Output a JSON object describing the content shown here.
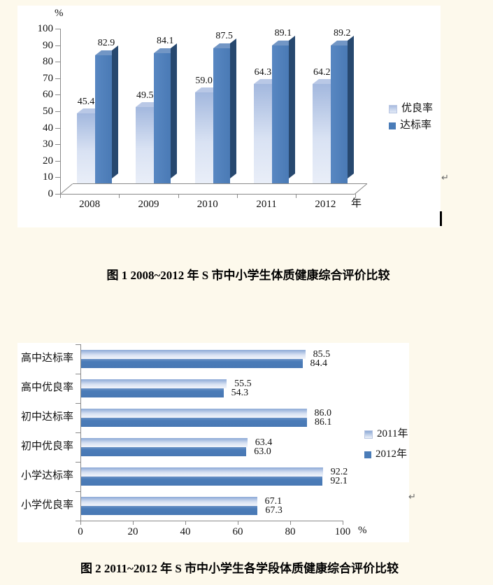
{
  "page": {
    "caption1": "图 1  2008~2012 年 S 市中小学生体质健康综合评价比较",
    "caption2": "图 2  2011~2012 年 S 市中小学生各学段体质健康综合评价比较",
    "return_mark": "↵",
    "background": "#fdf9ec",
    "accent_dark_blue": "#4a7cb8",
    "accent_light_blue": "#c5d3ec"
  },
  "chart_data": [
    {
      "type": "bar",
      "style": "3d-clustered-column",
      "title": "",
      "categories": [
        "2008",
        "2009",
        "2010",
        "2011",
        "2012"
      ],
      "series": [
        {
          "name": "优良率",
          "values": [
            45.4,
            49.5,
            59.0,
            64.3,
            64.2
          ],
          "color": "#c5d3ec"
        },
        {
          "name": "达标率",
          "values": [
            82.9,
            84.1,
            87.5,
            89.1,
            89.2
          ],
          "color": "#4a7cb8"
        }
      ],
      "ylabel": "%",
      "xlabel": "年",
      "ylim": [
        0,
        100
      ],
      "yticks": [
        0,
        10,
        20,
        30,
        40,
        50,
        60,
        70,
        80,
        90,
        100
      ],
      "grid": false,
      "legend_position": "right",
      "data_labels": true
    },
    {
      "type": "bar",
      "orientation": "horizontal",
      "title": "",
      "categories": [
        "高中达标率",
        "高中优良率",
        "初中达标率",
        "初中优良率",
        "小学达标率",
        "小学优良率"
      ],
      "series": [
        {
          "name": "2011年",
          "values": [
            85.5,
            55.5,
            86.0,
            63.4,
            92.2,
            67.1
          ],
          "color": "#c5d3ec"
        },
        {
          "name": "2012年",
          "values": [
            84.4,
            54.3,
            86.1,
            63.0,
            92.1,
            67.3
          ],
          "color": "#4a7cb8"
        }
      ],
      "xlabel": "%",
      "xlim": [
        0,
        100
      ],
      "xticks": [
        0,
        20,
        40,
        60,
        80,
        100
      ],
      "grid": false,
      "legend_position": "right",
      "data_labels": true
    }
  ]
}
